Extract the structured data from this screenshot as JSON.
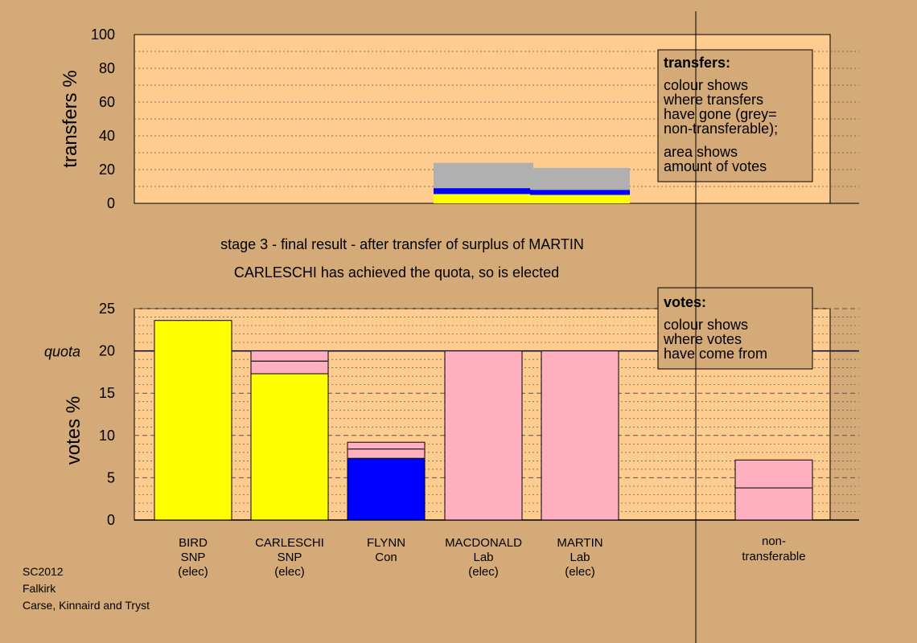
{
  "colors": {
    "background": "#d4aa78",
    "plot_background": "#ffcc8f",
    "SNP": "#ffff00",
    "Con": "#0000ff",
    "Lab": "#ffb0c0",
    "nontransferable": "#b0b0b0"
  },
  "status": {
    "stage_line": "stage 3 - final result - after transfer of surplus of MARTIN",
    "elected_line": "CARLESCHI has achieved the quota, so is elected"
  },
  "legends": {
    "transfers": {
      "title": "transfers:",
      "lines": [
        "colour shows",
        "where transfers",
        "have gone (grey=",
        "non-transferable);",
        "area shows",
        "amount of votes"
      ]
    },
    "votes": {
      "title": "votes:",
      "lines": [
        "colour shows",
        "where votes",
        "have come from"
      ]
    }
  },
  "footer": {
    "line1": "SC2012",
    "line2": "Falkirk",
    "line3": "Carse, Kinnaird and Tryst"
  },
  "chart_data": [
    {
      "type": "bar",
      "name": "transfers",
      "ylabel": "transfers %",
      "ylim": [
        0,
        100
      ],
      "yticks": [
        0,
        20,
        40,
        60,
        80,
        100
      ],
      "segment_colors": [
        "SNP",
        "Con",
        "nontransferable"
      ],
      "bars": [
        {
          "slot": "MACDONALD",
          "segments": [
            5.5,
            3.5,
            15
          ]
        },
        {
          "slot": "MARTIN",
          "segments": [
            5,
            3,
            13
          ]
        }
      ]
    },
    {
      "type": "bar",
      "name": "votes",
      "ylabel": "votes %",
      "ylim": [
        0,
        25
      ],
      "yticks": [
        0,
        5,
        10,
        15,
        20,
        25
      ],
      "quota": {
        "value": 20,
        "label": "quota"
      },
      "candidates": [
        {
          "name": "BIRD",
          "party": "SNP",
          "status": "(elec)",
          "segments": [
            {
              "color": "SNP",
              "value": 23.6
            }
          ]
        },
        {
          "name": "CARLESCHI",
          "party": "SNP",
          "status": "(elec)",
          "segments": [
            {
              "color": "SNP",
              "value": 17.3
            },
            {
              "color": "Lab",
              "value": 1.5
            },
            {
              "color": "Lab",
              "value": 1.2
            }
          ]
        },
        {
          "name": "FLYNN",
          "party": "Con",
          "status": "",
          "segments": [
            {
              "color": "Con",
              "value": 7.3
            },
            {
              "color": "Lab",
              "value": 1.1
            },
            {
              "color": "Lab",
              "value": 0.8
            }
          ]
        },
        {
          "name": "MACDONALD",
          "party": "Lab",
          "status": "(elec)",
          "segments": [
            {
              "color": "Lab",
              "value": 20
            }
          ]
        },
        {
          "name": "MARTIN",
          "party": "Lab",
          "status": "(elec)",
          "segments": [
            {
              "color": "Lab",
              "value": 20
            }
          ]
        }
      ],
      "nontransferable": {
        "label_line1": "non-",
        "label_line2": "transferable",
        "segments": [
          {
            "color": "Lab",
            "value": 3.8
          },
          {
            "color": "Lab",
            "value": 3.3
          }
        ]
      }
    }
  ]
}
